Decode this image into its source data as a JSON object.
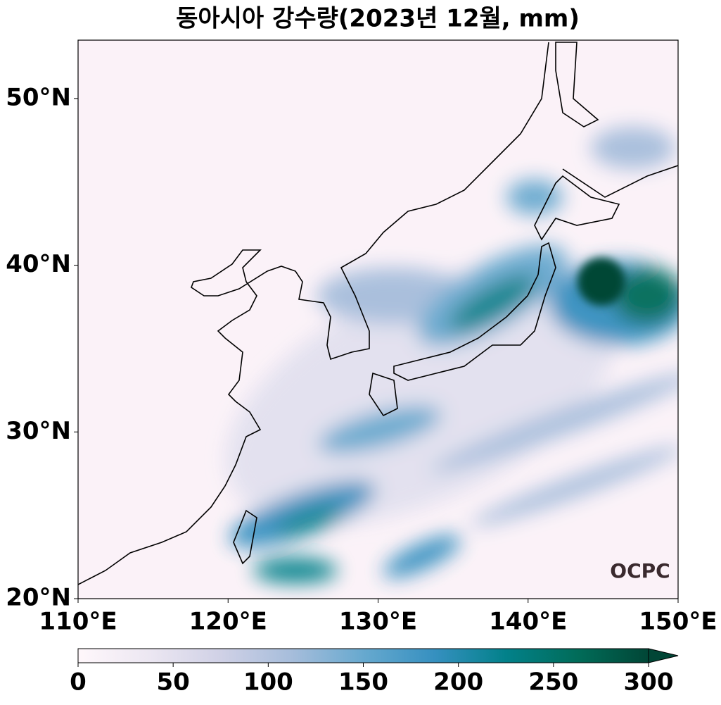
{
  "chart_data": {
    "type": "map",
    "title": "동아시아 강수량(2023년 12월, mm)",
    "xlim": [
      110,
      150
    ],
    "ylim": [
      20,
      53.5
    ],
    "xticks": [
      {
        "value": 110,
        "label": "110°E"
      },
      {
        "value": 120,
        "label": "120°E"
      },
      {
        "value": 130,
        "label": "130°E"
      },
      {
        "value": 140,
        "label": "140°E"
      },
      {
        "value": 150,
        "label": "150°E"
      }
    ],
    "yticks": [
      {
        "value": 20,
        "label": "20°N"
      },
      {
        "value": 30,
        "label": "30°N"
      },
      {
        "value": 40,
        "label": "40°N"
      },
      {
        "value": 50,
        "label": "50°N"
      }
    ],
    "colorbar": {
      "lim": [
        0,
        300
      ],
      "ticks": [
        0,
        50,
        100,
        150,
        200,
        250,
        300
      ],
      "extend": "max",
      "colormap": [
        "#fff7fb",
        "#ece7f2",
        "#d0d1e6",
        "#a6bddb",
        "#67a9cf",
        "#3690c0",
        "#02818a",
        "#016c59",
        "#014636"
      ]
    },
    "watermark": "OCPC"
  }
}
